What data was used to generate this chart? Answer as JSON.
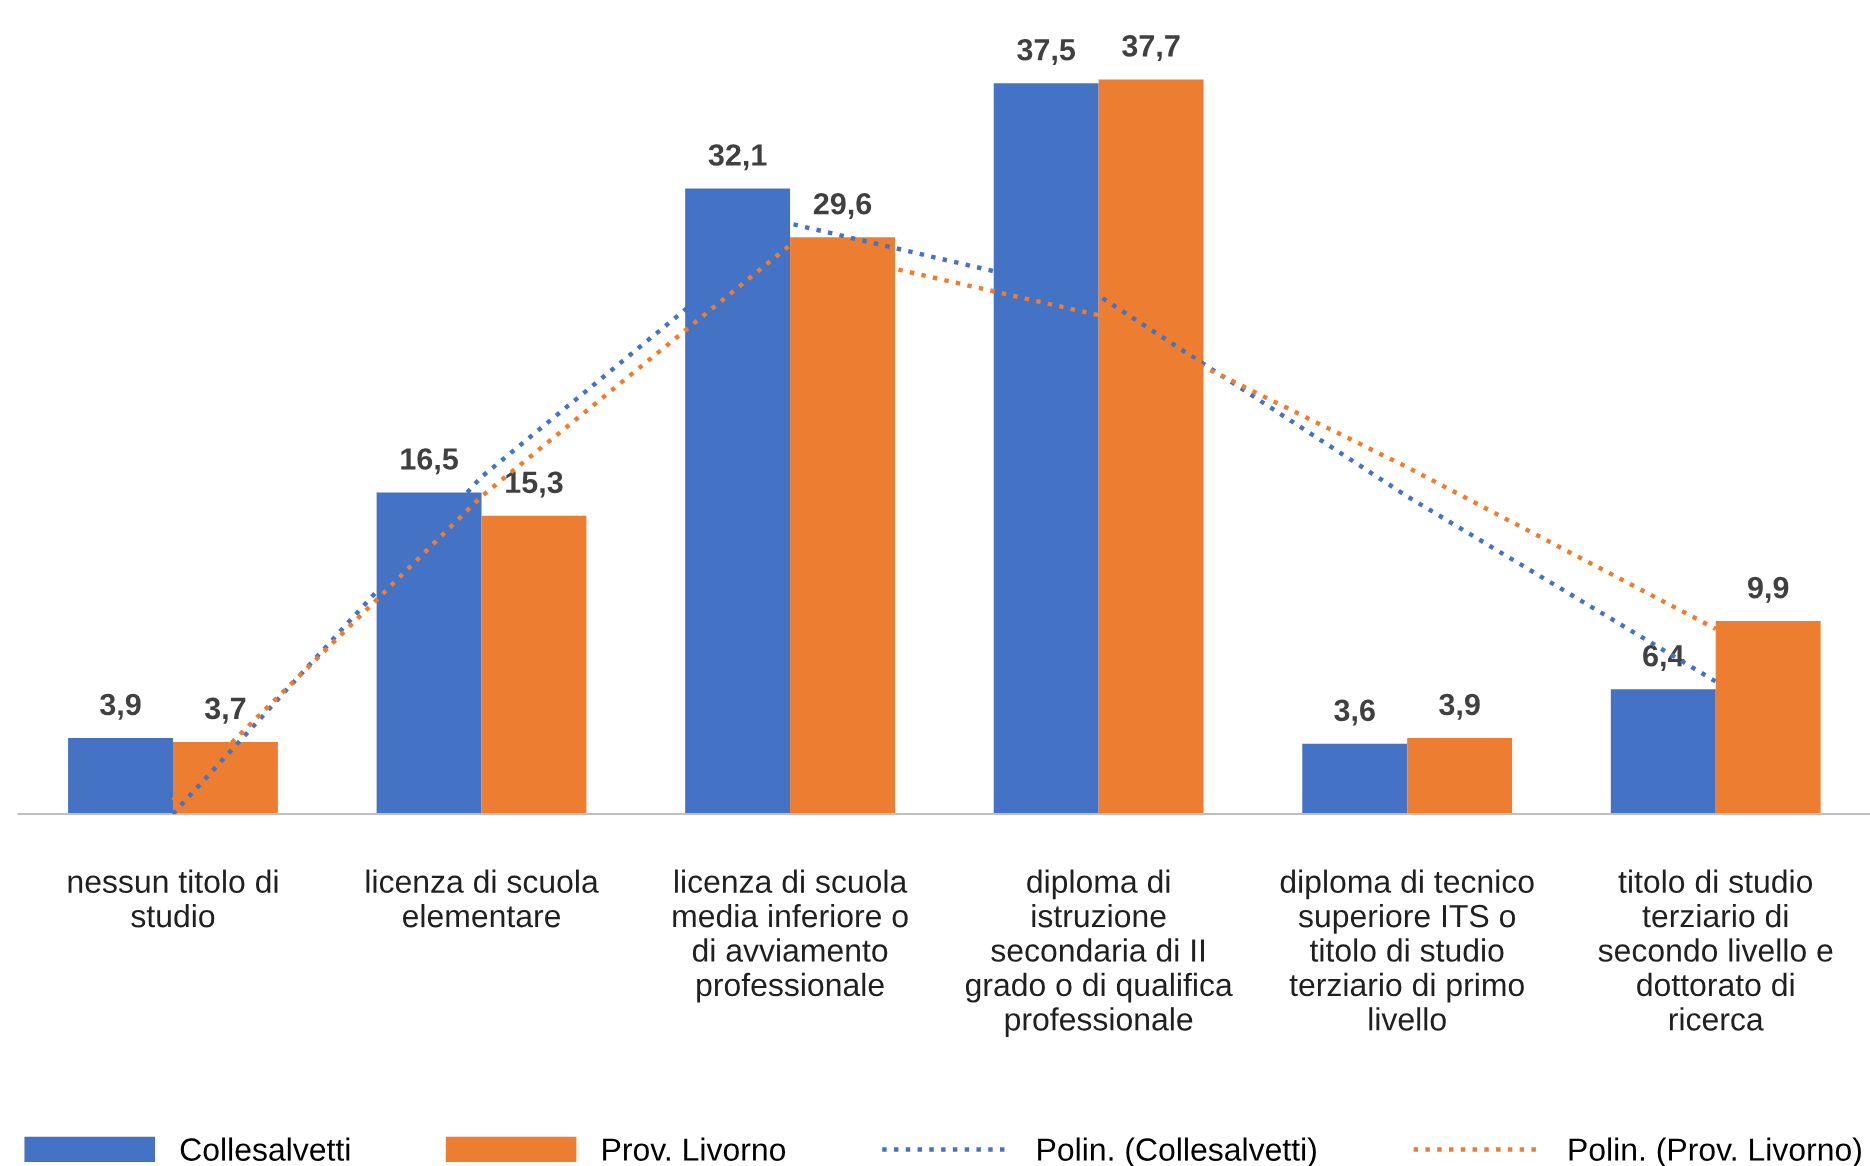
{
  "chart_data": {
    "type": "bar",
    "categories": [
      "nessun titolo di\nstudio",
      "licenza di scuola\nelementare",
      "licenza di scuola\nmedia inferiore o\ndi avviamento\nprofessionale",
      "diploma di\nistruzione\nsecondaria di II\ngrado o di qualifica\nprofessionale",
      "diploma di tecnico\nsuperiore ITS o\ntitolo di studio\nterziario di primo\nlivello",
      "titolo di studio\nterziario di\nsecondo livello e\ndottorato di\nricerca"
    ],
    "series": [
      {
        "name": "Collesalvetti",
        "color": "#4472c4",
        "values": [
          3.9,
          16.5,
          32.1,
          37.5,
          3.6,
          6.4
        ],
        "value_labels": [
          "3,9",
          "16,5",
          "32,1",
          "37,5",
          "3,6",
          "6,4"
        ]
      },
      {
        "name": "Prov. Livorno",
        "color": "#ed7d31",
        "values": [
          3.7,
          15.3,
          29.6,
          37.7,
          3.9,
          9.9
        ],
        "value_labels": [
          "3,7",
          "15,3",
          "29,6",
          "37,7",
          "3,9",
          "9,9"
        ]
      },
      {
        "name": "Polin. (Collesalvetti)",
        "type": "line",
        "line_style": "dotted",
        "color": "#4472c4",
        "values": [
          0,
          17.3,
          30.3,
          26.6,
          16.3,
          6.8
        ]
      },
      {
        "name": "Polin. (Prov. Livorno)",
        "type": "line",
        "line_style": "dotted",
        "color": "#ed7d31",
        "values": [
          0.7,
          16.3,
          29.2,
          25.6,
          17.8,
          9.5
        ]
      }
    ],
    "grid": false,
    "legend": "bottom"
  }
}
